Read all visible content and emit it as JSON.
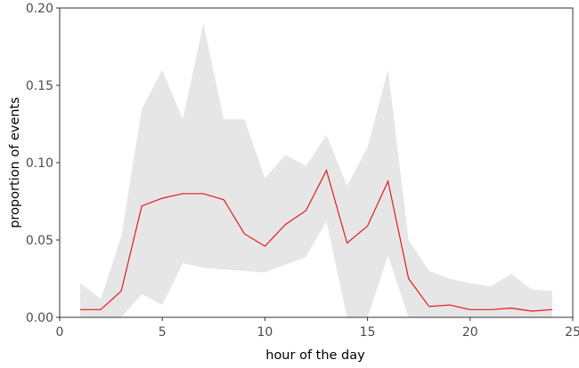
{
  "chart_data": {
    "type": "line",
    "title": "",
    "xlabel": "hour of the day",
    "ylabel": "proportion of events",
    "xlim": [
      0,
      25
    ],
    "ylim": [
      0,
      0.2
    ],
    "xticks": [
      0,
      5,
      10,
      15,
      20,
      25
    ],
    "yticks": [
      0.0,
      0.05,
      0.1,
      0.15,
      0.2
    ],
    "xtick_labels": [
      "0",
      "5",
      "10",
      "15",
      "20",
      "25"
    ],
    "ytick_labels": [
      "0.00",
      "0.05",
      "0.10",
      "0.15",
      "0.20"
    ],
    "grid": false,
    "x": [
      1,
      2,
      3,
      4,
      5,
      6,
      7,
      8,
      9,
      10,
      11,
      12,
      13,
      14,
      15,
      16,
      17,
      18,
      19,
      20,
      21,
      22,
      23,
      24
    ],
    "series": [
      {
        "values": [
          0.005,
          0.005,
          0.017,
          0.072,
          0.077,
          0.08,
          0.08,
          0.076,
          0.054,
          0.046,
          0.06,
          0.069,
          0.095,
          0.048,
          0.059,
          0.088,
          0.025,
          0.007,
          0.008,
          0.005,
          0.005,
          0.006,
          0.004,
          0.005
        ],
        "color": "#e41a1c"
      }
    ],
    "band": {
      "upper": [
        0.022,
        0.012,
        0.052,
        0.135,
        0.16,
        0.128,
        0.19,
        0.128,
        0.128,
        0.09,
        0.105,
        0.098,
        0.118,
        0.085,
        0.11,
        0.16,
        0.05,
        0.03,
        0.025,
        0.022,
        0.02,
        0.028,
        0.018,
        0.017
      ],
      "lower": [
        0.0,
        0.0,
        0.0,
        0.015,
        0.008,
        0.035,
        0.032,
        0.031,
        0.03,
        0.029,
        0.034,
        0.039,
        0.062,
        0.0,
        0.0,
        0.04,
        0.0,
        0.0,
        0.0,
        0.0,
        0.0,
        0.0,
        0.0,
        0.0
      ],
      "color": "#e6e6e6"
    }
  }
}
